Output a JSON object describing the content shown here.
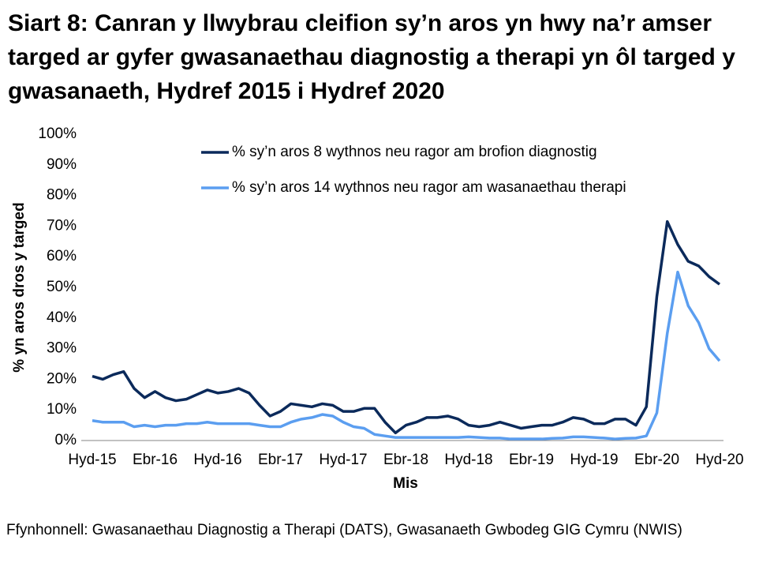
{
  "chart_data": {
    "type": "line",
    "title": "Siart 8: Canran y llwybrau cleifion sy’n aros yn hwy na’r amser targed ar gyfer gwasanaethau diagnostig a therapi yn ôl targed y gwasanaeth, Hydref 2015 i Hydref 2020",
    "x_label": "Mis",
    "y_label": "% yn aros dros y targed",
    "source": "Ffynhonnell: Gwasanaethau Diagnostig a Therapi (DATS), Gwasanaeth Gwbodeg GIG Cymru (NWIS)",
    "categories": [
      "Hyd-15",
      null,
      null,
      null,
      null,
      null,
      "Ebr-16",
      null,
      null,
      null,
      null,
      null,
      "Hyd-16",
      null,
      null,
      null,
      null,
      null,
      "Ebr-17",
      null,
      null,
      null,
      null,
      null,
      "Hyd-17",
      null,
      null,
      null,
      null,
      null,
      "Ebr-18",
      null,
      null,
      null,
      null,
      null,
      "Hyd-18",
      null,
      null,
      null,
      null,
      null,
      "Ebr-19",
      null,
      null,
      null,
      null,
      null,
      "Hyd-19",
      null,
      null,
      null,
      null,
      null,
      "Ebr-20",
      null,
      null,
      null,
      null,
      null,
      "Hyd-20"
    ],
    "series": [
      {
        "name": "% sy’n aros 8 wythnos neu ragor am brofion diagnostig",
        "color": "#0b2a5b",
        "values": [
          21,
          20,
          21.5,
          22.5,
          17,
          14,
          16,
          14,
          13,
          13.5,
          15,
          16.5,
          15.5,
          16,
          17,
          15.5,
          11.5,
          8,
          9.5,
          12,
          11.5,
          11,
          12,
          11.5,
          9.5,
          9.5,
          10.5,
          10.5,
          6,
          2.5,
          5,
          6,
          7.5,
          7.5,
          8,
          7,
          5,
          4.5,
          5,
          6,
          5,
          4,
          4.5,
          5,
          5,
          6,
          7.5,
          7,
          5.5,
          5.5,
          7,
          7,
          5,
          11,
          47,
          71.5,
          64,
          58.5,
          57,
          53.5,
          51
        ]
      },
      {
        "name": "% sy’n aros 14 wythnos neu ragor am wasanaethau therapi",
        "color": "#5b9ef0",
        "values": [
          6.5,
          6,
          6,
          6,
          4.5,
          5,
          4.5,
          5,
          5,
          5.5,
          5.5,
          6,
          5.5,
          5.5,
          5.5,
          5.5,
          5,
          4.5,
          4.5,
          6,
          7,
          7.5,
          8.5,
          8,
          6,
          4.5,
          4,
          2,
          1.5,
          1,
          1,
          1,
          1,
          1,
          1,
          1,
          1.2,
          1,
          0.8,
          0.8,
          0.5,
          0.5,
          0.5,
          0.5,
          0.7,
          0.8,
          1.2,
          1.2,
          1,
          0.8,
          0.5,
          0.7,
          0.8,
          1.5,
          9,
          35,
          55,
          44,
          38.5,
          30,
          26
        ]
      }
    ],
    "ylim": [
      0,
      100
    ],
    "yticks": [
      {
        "value": 0,
        "label": "0%"
      },
      {
        "value": 10,
        "label": "10%"
      },
      {
        "value": 20,
        "label": "20%"
      },
      {
        "value": 30,
        "label": "30%"
      },
      {
        "value": 40,
        "label": "40%"
      },
      {
        "value": 50,
        "label": "50%"
      },
      {
        "value": 60,
        "label": "60%"
      },
      {
        "value": 70,
        "label": "70%"
      },
      {
        "value": 80,
        "label": "80%"
      },
      {
        "value": 90,
        "label": "90%"
      },
      {
        "value": 100,
        "label": "100%"
      }
    ],
    "grid": false,
    "legend": "top"
  }
}
